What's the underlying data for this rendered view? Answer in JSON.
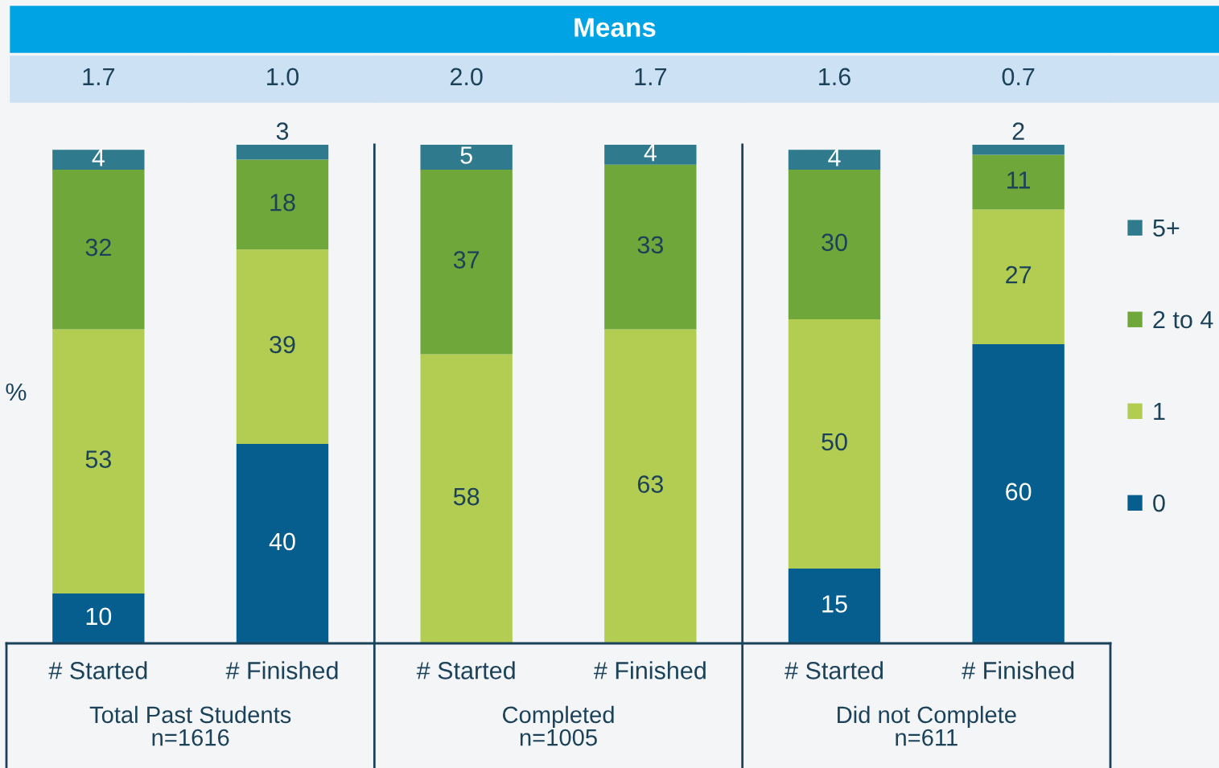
{
  "chart_data": {
    "type": "bar",
    "stacked": true,
    "categories": [
      "# Started",
      "# Finished",
      "# Started",
      "# Finished",
      "# Started",
      "# Finished"
    ],
    "series": [
      {
        "name": "0",
        "color": "#065e8f",
        "values": [
          10,
          40,
          null,
          null,
          15,
          60
        ]
      },
      {
        "name": "1",
        "color": "#b3cc52",
        "values": [
          53,
          39,
          58,
          63,
          50,
          27
        ]
      },
      {
        "name": "2 to 4",
        "color": "#70a73a",
        "values": [
          32,
          18,
          37,
          33,
          30,
          11
        ]
      },
      {
        "name": "5+",
        "color": "#2f7b8d",
        "values": [
          4,
          3,
          5,
          4,
          4,
          2
        ]
      }
    ],
    "ylabel": "%",
    "data_labels": true,
    "legend": "right",
    "tick_labels": "x",
    "annotations": [
      "Means",
      "1.7",
      "1.0",
      "2.0",
      "1.7",
      "1.6",
      "0.7",
      "Total Past Students\nn=1616",
      "Completed\nn=1005",
      "Did not Complete\nn=611"
    ]
  }
}
